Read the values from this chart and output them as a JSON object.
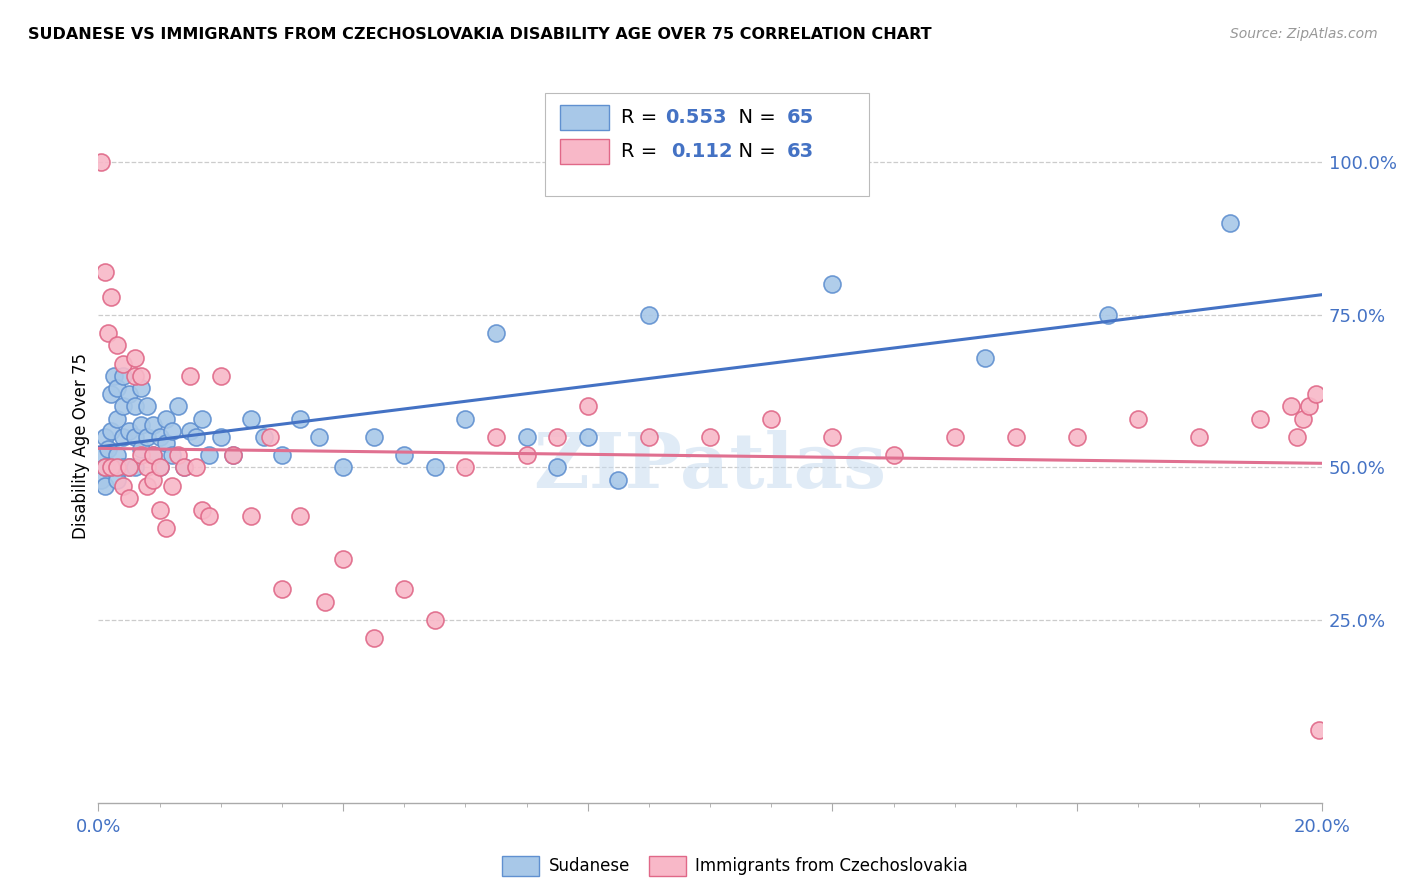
{
  "title": "SUDANESE VS IMMIGRANTS FROM CZECHOSLOVAKIA DISABILITY AGE OVER 75 CORRELATION CHART",
  "source": "Source: ZipAtlas.com",
  "ylabel": "Disability Age Over 75",
  "right_yticks": [
    0.25,
    0.5,
    0.75,
    1.0
  ],
  "right_yticklabels": [
    "25.0%",
    "50.0%",
    "75.0%",
    "100.0%"
  ],
  "xlim": [
    0.0,
    0.2
  ],
  "ylim": [
    -0.05,
    1.12
  ],
  "blue_R": 0.553,
  "blue_N": 65,
  "pink_R": 0.112,
  "pink_N": 63,
  "blue_color": "#A8C8E8",
  "pink_color": "#F8B8C8",
  "blue_edge_color": "#6090D0",
  "pink_edge_color": "#E06888",
  "blue_line_color": "#4472C4",
  "pink_line_color": "#E07090",
  "watermark": "ZIPatlas",
  "blue_scatter_x": [
    0.0005,
    0.0008,
    0.001,
    0.001,
    0.001,
    0.0015,
    0.002,
    0.002,
    0.002,
    0.0025,
    0.003,
    0.003,
    0.003,
    0.003,
    0.004,
    0.004,
    0.004,
    0.004,
    0.005,
    0.005,
    0.005,
    0.006,
    0.006,
    0.006,
    0.007,
    0.007,
    0.007,
    0.008,
    0.008,
    0.009,
    0.009,
    0.01,
    0.01,
    0.011,
    0.011,
    0.012,
    0.012,
    0.013,
    0.014,
    0.015,
    0.016,
    0.017,
    0.018,
    0.02,
    0.022,
    0.025,
    0.027,
    0.03,
    0.033,
    0.036,
    0.04,
    0.045,
    0.05,
    0.055,
    0.06,
    0.065,
    0.07,
    0.075,
    0.08,
    0.085,
    0.09,
    0.12,
    0.145,
    0.165,
    0.185
  ],
  "blue_scatter_y": [
    0.48,
    0.52,
    0.5,
    0.55,
    0.47,
    0.53,
    0.5,
    0.56,
    0.62,
    0.65,
    0.48,
    0.52,
    0.58,
    0.63,
    0.5,
    0.55,
    0.6,
    0.65,
    0.5,
    0.56,
    0.62,
    0.5,
    0.55,
    0.6,
    0.53,
    0.57,
    0.63,
    0.55,
    0.6,
    0.52,
    0.57,
    0.5,
    0.55,
    0.54,
    0.58,
    0.52,
    0.56,
    0.6,
    0.5,
    0.56,
    0.55,
    0.58,
    0.52,
    0.55,
    0.52,
    0.58,
    0.55,
    0.52,
    0.58,
    0.55,
    0.5,
    0.55,
    0.52,
    0.5,
    0.58,
    0.72,
    0.55,
    0.5,
    0.55,
    0.48,
    0.75,
    0.8,
    0.68,
    0.75,
    0.9
  ],
  "pink_scatter_x": [
    0.0005,
    0.001,
    0.001,
    0.0015,
    0.002,
    0.002,
    0.003,
    0.003,
    0.004,
    0.004,
    0.005,
    0.005,
    0.006,
    0.006,
    0.007,
    0.007,
    0.008,
    0.008,
    0.009,
    0.009,
    0.01,
    0.01,
    0.011,
    0.012,
    0.013,
    0.014,
    0.015,
    0.016,
    0.017,
    0.018,
    0.02,
    0.022,
    0.025,
    0.028,
    0.03,
    0.033,
    0.037,
    0.04,
    0.045,
    0.05,
    0.055,
    0.06,
    0.065,
    0.07,
    0.075,
    0.08,
    0.09,
    0.1,
    0.11,
    0.12,
    0.13,
    0.14,
    0.15,
    0.16,
    0.17,
    0.18,
    0.19,
    0.195,
    0.196,
    0.197,
    0.198,
    0.199,
    0.1995
  ],
  "pink_scatter_y": [
    1.0,
    0.82,
    0.5,
    0.72,
    0.78,
    0.5,
    0.7,
    0.5,
    0.67,
    0.47,
    0.5,
    0.45,
    0.65,
    0.68,
    0.52,
    0.65,
    0.5,
    0.47,
    0.52,
    0.48,
    0.5,
    0.43,
    0.4,
    0.47,
    0.52,
    0.5,
    0.65,
    0.5,
    0.43,
    0.42,
    0.65,
    0.52,
    0.42,
    0.55,
    0.3,
    0.42,
    0.28,
    0.35,
    0.22,
    0.3,
    0.25,
    0.5,
    0.55,
    0.52,
    0.55,
    0.6,
    0.55,
    0.55,
    0.58,
    0.55,
    0.52,
    0.55,
    0.55,
    0.55,
    0.58,
    0.55,
    0.58,
    0.6,
    0.55,
    0.58,
    0.6,
    0.62,
    0.07
  ]
}
